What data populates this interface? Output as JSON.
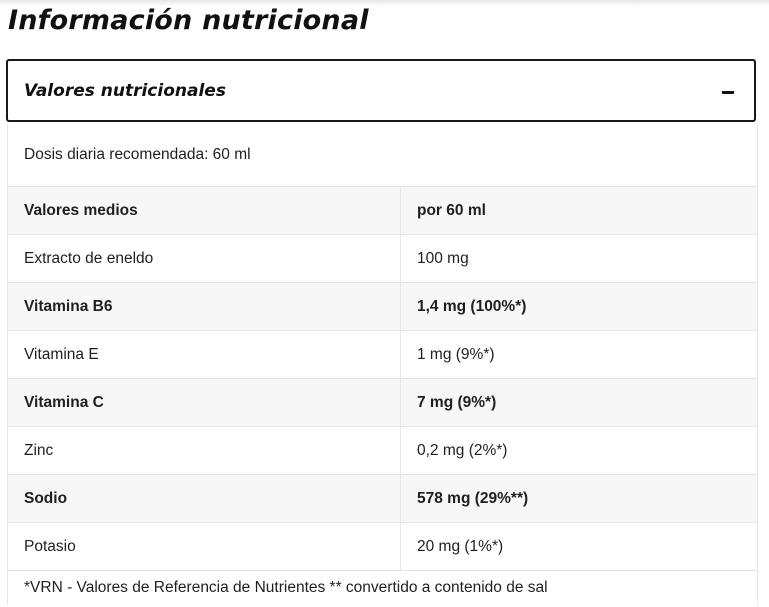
{
  "page": {
    "title": "Información nutricional"
  },
  "accordion": {
    "title": "Valores nutricionales",
    "icon": "minus-icon"
  },
  "panel": {
    "dose_text": "Dosis diaria recomendada: 60 ml",
    "header": {
      "col1": "Valores medios",
      "col2": "por 60 ml"
    },
    "rows": [
      {
        "name": "Extracto de eneldo",
        "value": "100 mg"
      },
      {
        "name": "Vitamina B6",
        "value": "1,4 mg (100%*)"
      },
      {
        "name": "Vitamina E",
        "value": "1 mg (9%*)"
      },
      {
        "name": "Vitamina C",
        "value": "7 mg (9%*)"
      },
      {
        "name": "Zinc",
        "value": "0,2 mg (2%*)"
      },
      {
        "name": "Sodio",
        "value": "578 mg (29%**)"
      },
      {
        "name": "Potasio",
        "value": "20 mg (1%*)"
      }
    ],
    "footnote": "*VRN - Valores de Referencia de Nutrientes ** convertido a contenido de sal"
  }
}
